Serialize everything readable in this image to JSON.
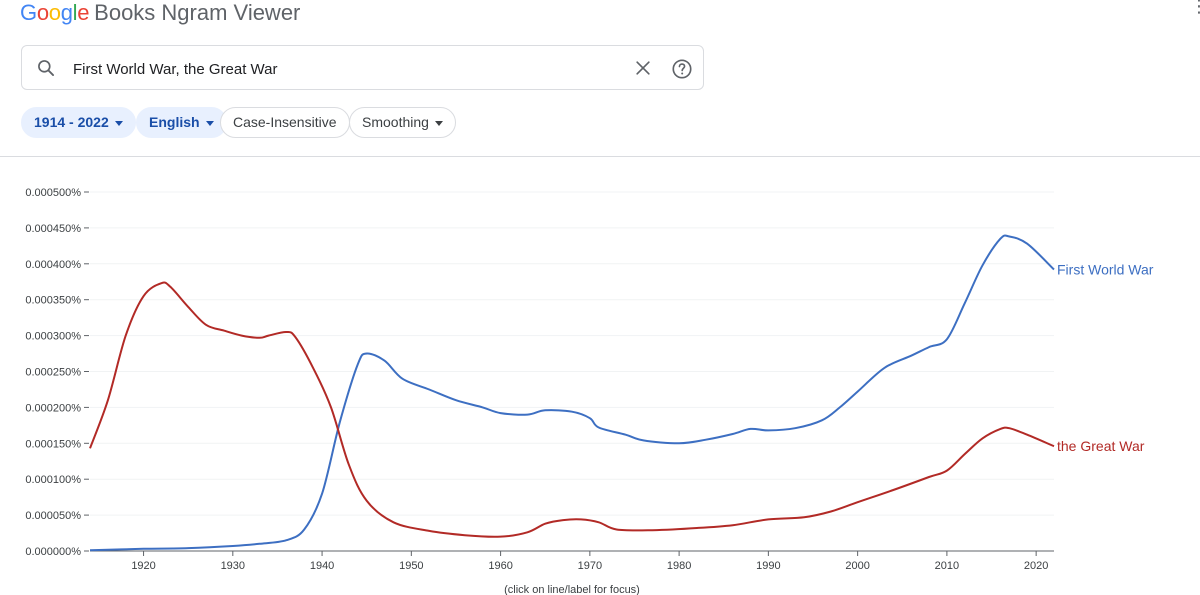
{
  "header": {
    "brand": "Google",
    "brand_colors": [
      "#4285F4",
      "#EA4335",
      "#FBBC05",
      "#4285F4",
      "#34A853",
      "#EA4335"
    ],
    "product": "Books Ngram Viewer"
  },
  "search": {
    "value": "First World War, the Great War",
    "placeholder": ""
  },
  "filters": {
    "year_range": "1914 - 2022",
    "corpus": "English",
    "case": "Case-Insensitive",
    "smoothing": "Smoothing"
  },
  "colors": {
    "accent": "#1a73e8",
    "series_blue": "#3d6fc2",
    "series_red": "#b22a26"
  },
  "chart_data": {
    "type": "line",
    "xlim": [
      1914,
      2022
    ],
    "ylim": [
      0,
      0.0005
    ],
    "yticks": [
      "0.000000%",
      "0.000050%",
      "0.000100%",
      "0.000150%",
      "0.000200%",
      "0.000250%",
      "0.000300%",
      "0.000350%",
      "0.000400%",
      "0.000450%",
      "0.000500%"
    ],
    "xticks": [
      "1920",
      "1930",
      "1940",
      "1950",
      "1960",
      "1970",
      "1980",
      "1990",
      "2000",
      "2010",
      "2020"
    ],
    "footnote": "(click on line/label for focus)",
    "series": [
      {
        "name": "First World War",
        "color": "#3d6fc2",
        "points": [
          [
            1914,
            1e-06
          ],
          [
            1920,
            3e-06
          ],
          [
            1925,
            4e-06
          ],
          [
            1930,
            7e-06
          ],
          [
            1933,
            1e-05
          ],
          [
            1936,
            1.5e-05
          ],
          [
            1938,
            3e-05
          ],
          [
            1940,
            8e-05
          ],
          [
            1942,
            0.00018
          ],
          [
            1944,
            0.00026
          ],
          [
            1945,
            0.000275
          ],
          [
            1947,
            0.000265
          ],
          [
            1949,
            0.00024
          ],
          [
            1952,
            0.000225
          ],
          [
            1955,
            0.00021
          ],
          [
            1958,
            0.0002
          ],
          [
            1960,
            0.000192
          ],
          [
            1963,
            0.00019
          ],
          [
            1965,
            0.000196
          ],
          [
            1968,
            0.000194
          ],
          [
            1970,
            0.000185
          ],
          [
            1971,
            0.000172
          ],
          [
            1974,
            0.000162
          ],
          [
            1976,
            0.000154
          ],
          [
            1980,
            0.00015
          ],
          [
            1983,
            0.000155
          ],
          [
            1986,
            0.000163
          ],
          [
            1988,
            0.00017
          ],
          [
            1990,
            0.000168
          ],
          [
            1993,
            0.000171
          ],
          [
            1996,
            0.000182
          ],
          [
            1998,
            0.0002
          ],
          [
            2000,
            0.000222
          ],
          [
            2003,
            0.000255
          ],
          [
            2006,
            0.000272
          ],
          [
            2008,
            0.000284
          ],
          [
            2010,
            0.000295
          ],
          [
            2012,
            0.000345
          ],
          [
            2014,
            0.000398
          ],
          [
            2016,
            0.000435
          ],
          [
            2017,
            0.000438
          ],
          [
            2019,
            0.000428
          ],
          [
            2022,
            0.000392
          ]
        ]
      },
      {
        "name": "the Great War",
        "color": "#b22a26",
        "points": [
          [
            1914,
            0.000143
          ],
          [
            1916,
            0.00021
          ],
          [
            1918,
            0.0003
          ],
          [
            1920,
            0.000355
          ],
          [
            1922,
            0.000373
          ],
          [
            1923,
            0.000368
          ],
          [
            1925,
            0.00034
          ],
          [
            1927,
            0.000315
          ],
          [
            1929,
            0.000307
          ],
          [
            1931,
            0.0003
          ],
          [
            1933,
            0.000297
          ],
          [
            1934,
            0.0003
          ],
          [
            1936,
            0.000305
          ],
          [
            1937,
            0.000298
          ],
          [
            1939,
            0.000255
          ],
          [
            1941,
            0.0002
          ],
          [
            1943,
            0.00012
          ],
          [
            1945,
            7e-05
          ],
          [
            1948,
            4e-05
          ],
          [
            1952,
            2.8e-05
          ],
          [
            1956,
            2.2e-05
          ],
          [
            1960,
            2e-05
          ],
          [
            1963,
            2.6e-05
          ],
          [
            1965,
            3.8e-05
          ],
          [
            1967,
            4.3e-05
          ],
          [
            1969,
            4.4e-05
          ],
          [
            1971,
            4e-05
          ],
          [
            1973,
            3e-05
          ],
          [
            1977,
            2.9e-05
          ],
          [
            1982,
            3.2e-05
          ],
          [
            1986,
            3.6e-05
          ],
          [
            1990,
            4.4e-05
          ],
          [
            1994,
            4.7e-05
          ],
          [
            1997,
            5.5e-05
          ],
          [
            2000,
            6.8e-05
          ],
          [
            2004,
            8.5e-05
          ],
          [
            2008,
            0.000103
          ],
          [
            2010,
            0.000112
          ],
          [
            2012,
            0.000135
          ],
          [
            2014,
            0.000157
          ],
          [
            2016,
            0.00017
          ],
          [
            2017,
            0.000171
          ],
          [
            2019,
            0.000162
          ],
          [
            2022,
            0.000146
          ]
        ]
      }
    ]
  }
}
